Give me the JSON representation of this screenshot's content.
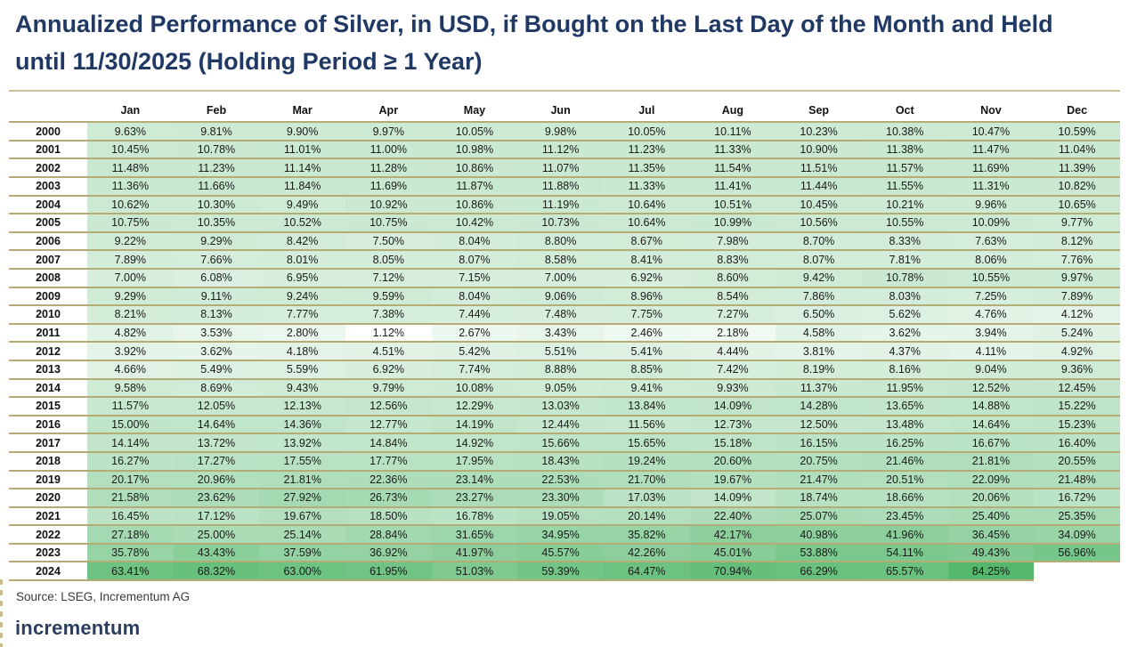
{
  "title": "Annualized Performance of Silver, in USD, if Bought on the Last Day of the Month and Held until 11/30/2025 (Holding Period ≥ 1 Year)",
  "source": "Source: LSEG, Incrementum AG",
  "logo": "incrementum",
  "colors": {
    "title_navy": "#1f3864",
    "separator_tan": "#b5ab74",
    "title_rule_tan": "#cdc39a",
    "heat_min_color": "#ffffff",
    "heat_max_color": "#55b86d"
  },
  "chart_data": {
    "type": "heatmap",
    "unit": "%",
    "columns": [
      "Jan",
      "Feb",
      "Mar",
      "Apr",
      "May",
      "Jun",
      "Jul",
      "Aug",
      "Sep",
      "Oct",
      "Nov",
      "Dec"
    ],
    "rows": [
      "2000",
      "2001",
      "2002",
      "2003",
      "2004",
      "2005",
      "2006",
      "2007",
      "2008",
      "2009",
      "2010",
      "2011",
      "2012",
      "2013",
      "2014",
      "2015",
      "2016",
      "2017",
      "2018",
      "2019",
      "2020",
      "2021",
      "2022",
      "2023",
      "2024"
    ],
    "values": [
      [
        9.63,
        9.81,
        9.9,
        9.97,
        10.05,
        9.98,
        10.05,
        10.11,
        10.23,
        10.38,
        10.47,
        10.59
      ],
      [
        10.45,
        10.78,
        11.01,
        11.0,
        10.98,
        11.12,
        11.23,
        11.33,
        10.9,
        11.38,
        11.47,
        11.04
      ],
      [
        11.48,
        11.23,
        11.14,
        11.28,
        10.86,
        11.07,
        11.35,
        11.54,
        11.51,
        11.57,
        11.69,
        11.39
      ],
      [
        11.36,
        11.66,
        11.84,
        11.69,
        11.87,
        11.88,
        11.33,
        11.41,
        11.44,
        11.55,
        11.31,
        10.82
      ],
      [
        10.62,
        10.3,
        9.49,
        10.92,
        10.86,
        11.19,
        10.64,
        10.51,
        10.45,
        10.21,
        9.96,
        10.65
      ],
      [
        10.75,
        10.35,
        10.52,
        10.75,
        10.42,
        10.73,
        10.64,
        10.99,
        10.56,
        10.55,
        10.09,
        9.77
      ],
      [
        9.22,
        9.29,
        8.42,
        7.5,
        8.04,
        8.8,
        8.67,
        7.98,
        8.7,
        8.33,
        7.63,
        8.12
      ],
      [
        7.89,
        7.66,
        8.01,
        8.05,
        8.07,
        8.58,
        8.41,
        8.83,
        8.07,
        7.81,
        8.06,
        7.76
      ],
      [
        7.0,
        6.08,
        6.95,
        7.12,
        7.15,
        7.0,
        6.92,
        8.6,
        9.42,
        10.78,
        10.55,
        9.97
      ],
      [
        9.29,
        9.11,
        9.24,
        9.59,
        8.04,
        9.06,
        8.96,
        8.54,
        7.86,
        8.03,
        7.25,
        7.89
      ],
      [
        8.21,
        8.13,
        7.77,
        7.38,
        7.44,
        7.48,
        7.75,
        7.27,
        6.5,
        5.62,
        4.76,
        4.12
      ],
      [
        4.82,
        3.53,
        2.8,
        1.12,
        2.67,
        3.43,
        2.46,
        2.18,
        4.58,
        3.62,
        3.94,
        5.24
      ],
      [
        3.92,
        3.62,
        4.18,
        4.51,
        5.42,
        5.51,
        5.41,
        4.44,
        3.81,
        4.37,
        4.11,
        4.92
      ],
      [
        4.66,
        5.49,
        5.59,
        6.92,
        7.74,
        8.88,
        8.85,
        7.42,
        8.19,
        8.16,
        9.04,
        9.36
      ],
      [
        9.58,
        8.69,
        9.43,
        9.79,
        10.08,
        9.05,
        9.41,
        9.93,
        11.37,
        11.95,
        12.52,
        12.45
      ],
      [
        11.57,
        12.05,
        12.13,
        12.56,
        12.29,
        13.03,
        13.84,
        14.09,
        14.28,
        13.65,
        14.88,
        15.22
      ],
      [
        15.0,
        14.64,
        14.36,
        12.77,
        14.19,
        12.44,
        11.56,
        12.73,
        12.5,
        13.48,
        14.64,
        15.23
      ],
      [
        14.14,
        13.72,
        13.92,
        14.84,
        14.92,
        15.66,
        15.65,
        15.18,
        16.15,
        16.25,
        16.67,
        16.4
      ],
      [
        16.27,
        17.27,
        17.55,
        17.77,
        17.95,
        18.43,
        19.24,
        20.6,
        20.75,
        21.46,
        21.81,
        20.55
      ],
      [
        20.17,
        20.96,
        21.81,
        22.36,
        23.14,
        22.53,
        21.7,
        19.67,
        21.47,
        20.51,
        22.09,
        21.48
      ],
      [
        21.58,
        23.62,
        27.92,
        26.73,
        23.27,
        23.3,
        17.03,
        14.09,
        18.74,
        18.66,
        20.06,
        16.72
      ],
      [
        16.45,
        17.12,
        19.67,
        18.5,
        16.78,
        19.05,
        20.14,
        22.4,
        25.07,
        23.45,
        25.4,
        25.35
      ],
      [
        27.18,
        25.0,
        25.14,
        28.84,
        31.65,
        34.95,
        35.82,
        42.17,
        40.98,
        41.96,
        36.45,
        34.09
      ],
      [
        35.78,
        43.43,
        37.59,
        36.92,
        41.97,
        45.57,
        42.26,
        45.01,
        53.88,
        54.11,
        49.43,
        56.96
      ],
      [
        63.41,
        68.32,
        63.0,
        61.95,
        51.03,
        59.39,
        64.47,
        70.94,
        66.29,
        65.57,
        84.25,
        null
      ]
    ],
    "scale": {
      "min_value": 1.12,
      "max_value": 84.25,
      "min_color": "#ffffff",
      "max_color": "#55b86d"
    },
    "title": "Annualized Performance of Silver, in USD, if Bought on the Last Day of the Month and Held until 11/30/2025 (Holding Period ≥ 1 Year)",
    "legend": "none",
    "grid": "horizontal-tan-separators"
  }
}
